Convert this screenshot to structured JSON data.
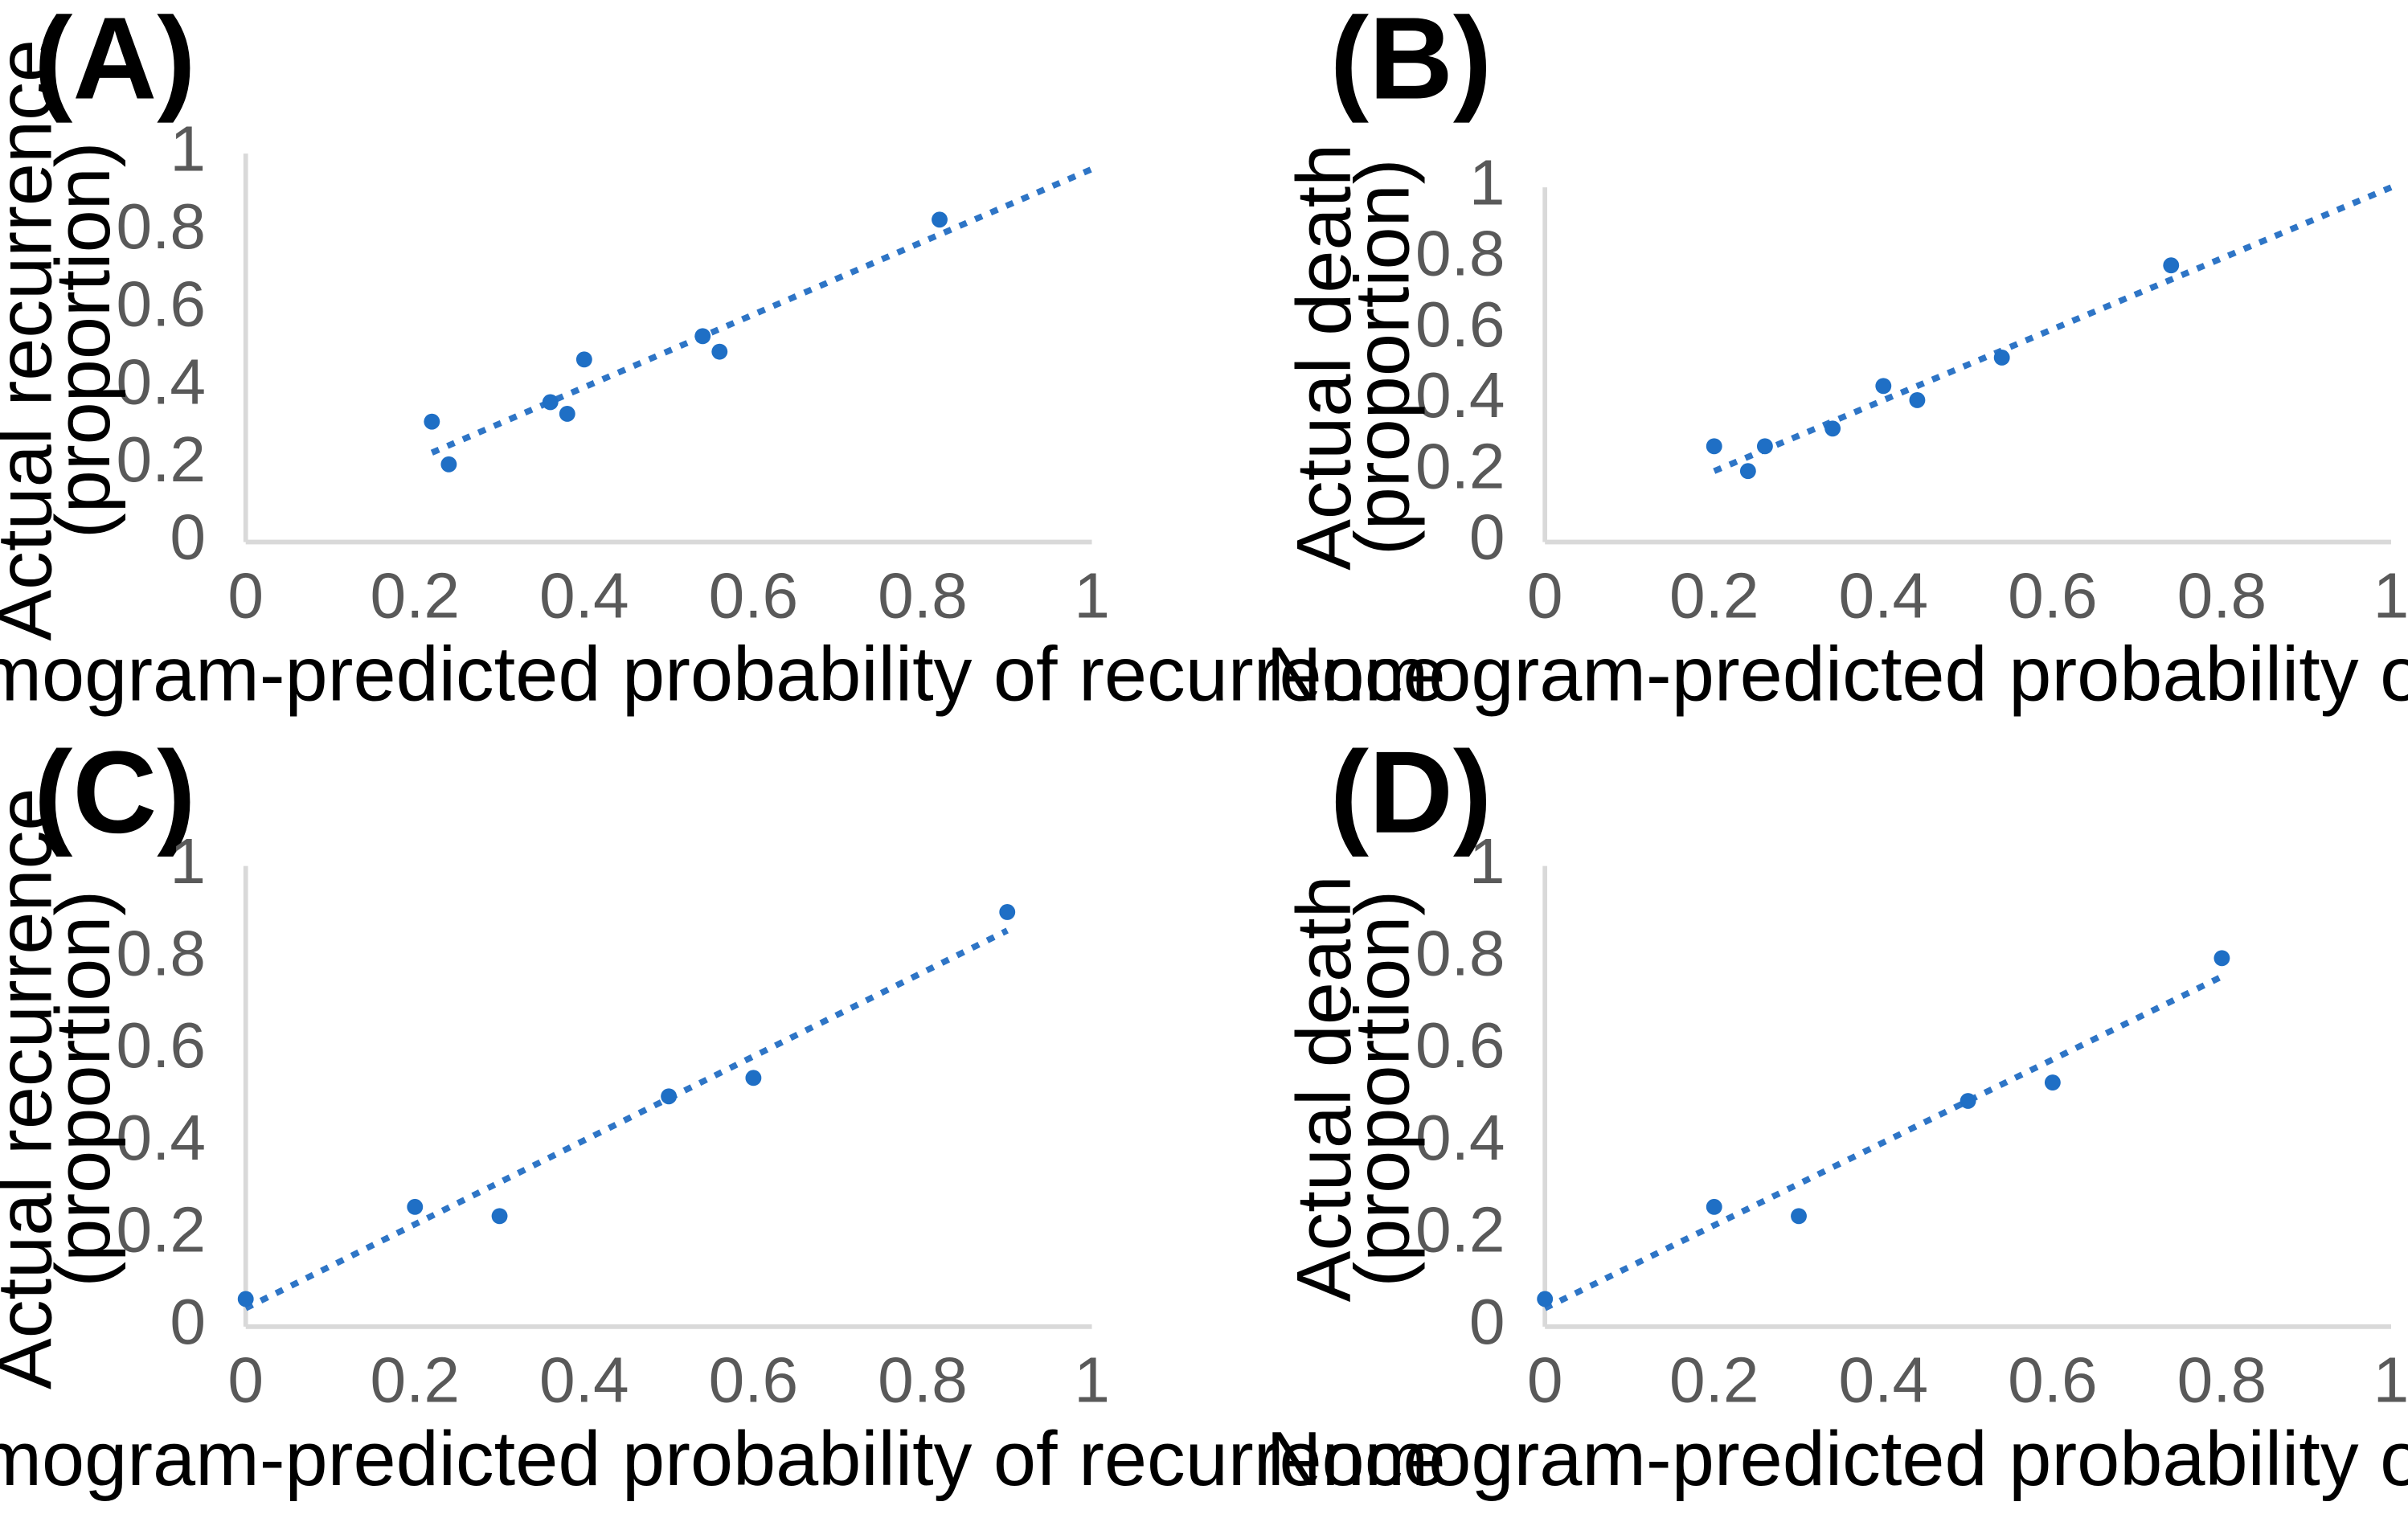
{
  "colors": {
    "marker": "#1f6fc5",
    "trendline": "#2e75c6",
    "axis": "#d9d9d9",
    "tick_text": "#595959"
  },
  "chart_data": [
    {
      "panel": "(A)",
      "type": "scatter",
      "xlabel": "Nomogram-predicted probability of recurrence",
      "ylabel": [
        "Actual recurrence",
        "(proportion)"
      ],
      "xlim": [
        0,
        1
      ],
      "ylim": [
        0,
        1
      ],
      "xticks": [
        "0",
        "0.2",
        "0.4",
        "0.6",
        "0.8",
        "1"
      ],
      "yticks": [
        "0",
        "0.2",
        "0.4",
        "0.6",
        "0.8",
        "1"
      ],
      "grid": false,
      "points": [
        {
          "x": 0.22,
          "y": 0.31
        },
        {
          "x": 0.24,
          "y": 0.2
        },
        {
          "x": 0.36,
          "y": 0.36
        },
        {
          "x": 0.38,
          "y": 0.33
        },
        {
          "x": 0.4,
          "y": 0.47
        },
        {
          "x": 0.54,
          "y": 0.53
        },
        {
          "x": 0.56,
          "y": 0.49
        },
        {
          "x": 0.82,
          "y": 0.83
        }
      ],
      "trendline": {
        "type": "linear",
        "from": {
          "x": 0.22,
          "y": 0.23
        },
        "to": {
          "x": 1.0,
          "y": 0.96
        }
      }
    },
    {
      "panel": "(B)",
      "type": "scatter",
      "xlabel": "Nomogram-predicted probability of death",
      "ylabel": [
        "Actual death",
        "(proportion)"
      ],
      "xlim": [
        0,
        1
      ],
      "ylim": [
        0,
        1
      ],
      "xticks": [
        "0",
        "0.2",
        "0.4",
        "0.6",
        "0.8",
        "1"
      ],
      "yticks": [
        "0",
        "0.2",
        "0.4",
        "0.6",
        "0.8",
        "1"
      ],
      "grid": false,
      "points": [
        {
          "x": 0.2,
          "y": 0.27
        },
        {
          "x": 0.24,
          "y": 0.2
        },
        {
          "x": 0.26,
          "y": 0.27
        },
        {
          "x": 0.34,
          "y": 0.32
        },
        {
          "x": 0.4,
          "y": 0.44
        },
        {
          "x": 0.44,
          "y": 0.4
        },
        {
          "x": 0.54,
          "y": 0.52
        },
        {
          "x": 0.74,
          "y": 0.78
        }
      ],
      "trendline": {
        "type": "linear",
        "from": {
          "x": 0.2,
          "y": 0.2
        },
        "to": {
          "x": 1.0,
          "y": 1.0
        }
      }
    },
    {
      "panel": "(C)",
      "type": "scatter",
      "xlabel": "Nomogram-predicted probability of recurrence",
      "ylabel": [
        "Actual recurrence",
        "(proportion)"
      ],
      "xlim": [
        0,
        1
      ],
      "ylim": [
        0,
        1
      ],
      "xticks": [
        "0",
        "0.2",
        "0.4",
        "0.6",
        "0.8",
        "1"
      ],
      "yticks": [
        "0",
        "0.2",
        "0.4",
        "0.6",
        "0.8",
        "1"
      ],
      "grid": false,
      "points": [
        {
          "x": 0.0,
          "y": 0.06
        },
        {
          "x": 0.2,
          "y": 0.26
        },
        {
          "x": 0.3,
          "y": 0.24
        },
        {
          "x": 0.5,
          "y": 0.5
        },
        {
          "x": 0.6,
          "y": 0.54
        },
        {
          "x": 0.9,
          "y": 0.9
        }
      ],
      "trendline": {
        "type": "linear",
        "from": {
          "x": 0.0,
          "y": 0.04
        },
        "to": {
          "x": 0.9,
          "y": 0.86
        }
      }
    },
    {
      "panel": "(D)",
      "type": "scatter",
      "xlabel": "Nomogram-predicted probability of death",
      "ylabel": [
        "Actual death",
        "(proportion)"
      ],
      "xlim": [
        0,
        1
      ],
      "ylim": [
        0,
        1
      ],
      "xticks": [
        "0",
        "0.2",
        "0.4",
        "0.6",
        "0.8",
        "1"
      ],
      "yticks": [
        "0",
        "0.2",
        "0.4",
        "0.6",
        "0.8",
        "1"
      ],
      "grid": false,
      "points": [
        {
          "x": 0.0,
          "y": 0.06
        },
        {
          "x": 0.2,
          "y": 0.26
        },
        {
          "x": 0.3,
          "y": 0.24
        },
        {
          "x": 0.5,
          "y": 0.49
        },
        {
          "x": 0.6,
          "y": 0.53
        },
        {
          "x": 0.8,
          "y": 0.8
        }
      ],
      "trendline": {
        "type": "linear",
        "from": {
          "x": 0.0,
          "y": 0.04
        },
        "to": {
          "x": 0.8,
          "y": 0.76
        }
      }
    }
  ]
}
